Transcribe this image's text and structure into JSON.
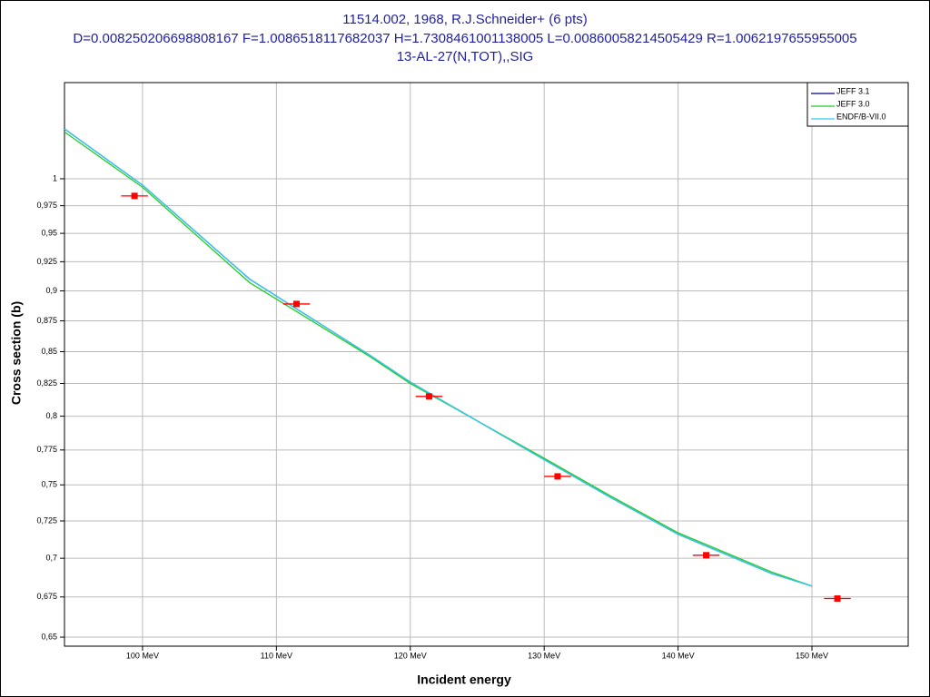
{
  "chart_data": {
    "type": "line",
    "title": "11514.002, 1968, R.J.Schneider+ (6 pts)",
    "subtitle": "D=0.008250206698808167 F=1.0086518117682037 H=1.7308461001138005 L=0.00860058214505429 R=1.0062197655955005",
    "subtitle2": "13-AL-27(N,TOT),,SIG",
    "xlabel": "Incident energy",
    "ylabel": "Cross section (b)",
    "xlim": [
      94.17,
      157.19
    ],
    "ylim": [
      0.6445,
      1.0946
    ],
    "ylog": true,
    "grid": true,
    "legend": "upper-right",
    "xticks": [
      {
        "value": 100,
        "label": "100 MeV"
      },
      {
        "value": 110,
        "label": "110 MeV"
      },
      {
        "value": 120,
        "label": "120 MeV"
      },
      {
        "value": 130,
        "label": "130 MeV"
      },
      {
        "value": 140,
        "label": "140 MeV"
      },
      {
        "value": 150,
        "label": "150 MeV"
      }
    ],
    "yticks": [
      1,
      {
        "value": 0.975,
        "label": "0,975"
      },
      {
        "value": 0.95,
        "label": "0,95"
      },
      {
        "value": 0.925,
        "label": "0,925"
      },
      {
        "value": 0.9,
        "label": "0,9"
      },
      {
        "value": 0.875,
        "label": "0,875"
      },
      {
        "value": 0.85,
        "label": "0,85"
      },
      {
        "value": 0.825,
        "label": "0,825"
      },
      {
        "value": 0.8,
        "label": "0,8"
      },
      {
        "value": 0.775,
        "label": "0,775"
      },
      {
        "value": 0.75,
        "label": "0,75"
      },
      {
        "value": 0.725,
        "label": "0,725"
      },
      {
        "value": 0.7,
        "label": "0,7"
      },
      {
        "value": 0.675,
        "label": "0,675"
      },
      {
        "value": 0.65,
        "label": "0,65"
      }
    ],
    "series": [
      {
        "name": "JEFF 3.1",
        "color": "#00008b",
        "x": [
          94.17,
          100,
          108,
          117,
          120,
          130,
          135,
          140,
          147,
          150
        ],
        "values": [
          1.048,
          0.994,
          0.91,
          0.847,
          0.826,
          0.768,
          0.741,
          0.716,
          0.69,
          0.682
        ]
      },
      {
        "name": "JEFF 3.0",
        "color": "#22cc22",
        "x": [
          94.17,
          100,
          108,
          117,
          120,
          130,
          135,
          140,
          147,
          150
        ],
        "values": [
          1.045,
          0.992,
          0.907,
          0.846,
          0.825,
          0.769,
          0.742,
          0.717,
          0.691,
          0.682
        ]
      },
      {
        "name": "ENDF/B-VII.0",
        "color": "#33ccee",
        "x": [
          94.17,
          100,
          108,
          117,
          120,
          130,
          135,
          140,
          147,
          150
        ],
        "values": [
          1.048,
          0.994,
          0.91,
          0.847,
          0.826,
          0.768,
          0.741,
          0.716,
          0.69,
          0.682
        ]
      }
    ],
    "points": {
      "color": "#ff0000",
      "x": [
        99.4,
        111.5,
        121.4,
        131.0,
        142.1,
        151.9
      ],
      "xerr": [
        1.0,
        1.0,
        1.0,
        1.0,
        1.0,
        1.0
      ],
      "values": [
        0.984,
        0.889,
        0.815,
        0.756,
        0.702,
        0.674
      ]
    }
  }
}
